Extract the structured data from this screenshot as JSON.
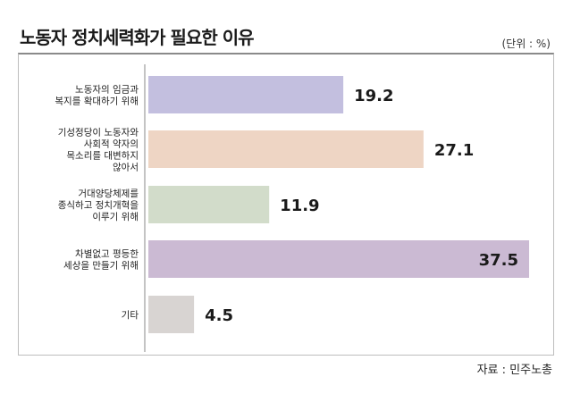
{
  "title": "노동자 정치세력화가 필요한 이유",
  "unit": "(단위 : %)",
  "source": "자료 : 민주노총",
  "chart_data": {
    "type": "bar",
    "orientation": "horizontal",
    "title": "노동자 정치세력화가 필요한 이유",
    "unit": "(단위 : %)",
    "categories": [
      [
        "노동자의 임금과",
        "복지를 확대하기 위해"
      ],
      [
        "기성정당이 노동자와",
        "사회적 약자의",
        "목소리를 대변하지",
        "않아서"
      ],
      [
        "거대양당체제를",
        "종식하고 정치개혁을",
        "이루기 위해"
      ],
      [
        "차별없고 평등한",
        "세상을 만들기 위해"
      ],
      [
        "기타"
      ]
    ],
    "values": [
      19.2,
      27.1,
      11.9,
      37.5,
      4.5
    ],
    "value_labels": [
      "19.2",
      "27.1",
      "11.9",
      "37.5",
      "4.5"
    ],
    "colors": [
      "#c3bfdf",
      "#eed5c4",
      "#d2dcca",
      "#cbbad3",
      "#d8d4d2"
    ],
    "xlim": [
      0,
      37.5
    ],
    "grid": false,
    "legend": "none"
  }
}
